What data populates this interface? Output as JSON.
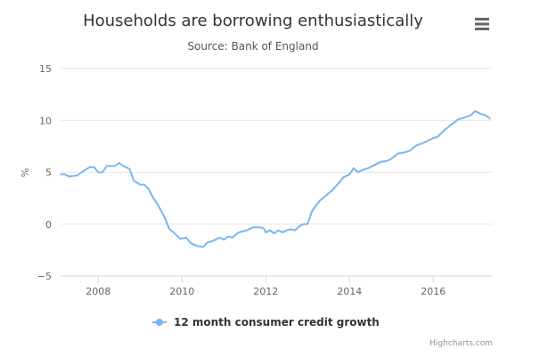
{
  "colors": {
    "series": "#7cb5ec",
    "grid": "#e6e6e6",
    "text": "#333333",
    "credits": "#909090"
  },
  "icons": {
    "menu": "hamburger-menu-icon"
  },
  "credits": "Highcharts.com",
  "chart_data": {
    "type": "line",
    "title": "Households are borrowing enthusiastically",
    "subtitle": "Source: Bank of England",
    "xlabel": "",
    "ylabel": "%",
    "xlim": [
      2007.1,
      2017.4
    ],
    "ylim": [
      -5,
      15
    ],
    "x_ticks": [
      2008,
      2010,
      2012,
      2014,
      2016
    ],
    "x_tick_labels": [
      "2008",
      "2010",
      "2012",
      "2014",
      "2016"
    ],
    "y_ticks": [
      -5,
      0,
      5,
      10,
      15
    ],
    "y_tick_labels": [
      "−5",
      "0",
      "5",
      "10",
      "15"
    ],
    "grid": true,
    "legend": "bottom-center",
    "series": [
      {
        "name": "12 month consumer credit growth",
        "color": "#7cb5ec",
        "x": [
          2007.1,
          2007.2,
          2007.3,
          2007.5,
          2007.6,
          2007.8,
          2007.9,
          2008.0,
          2008.1,
          2008.2,
          2008.3,
          2008.4,
          2008.5,
          2008.6,
          2008.75,
          2008.85,
          2009.0,
          2009.1,
          2009.2,
          2009.3,
          2009.4,
          2009.5,
          2009.6,
          2009.7,
          2009.8,
          2009.95,
          2010.1,
          2010.2,
          2010.35,
          2010.5,
          2010.6,
          2010.75,
          2010.9,
          2011.0,
          2011.1,
          2011.2,
          2011.35,
          2011.45,
          2011.55,
          2011.7,
          2011.85,
          2011.95,
          2012.0,
          2012.1,
          2012.2,
          2012.3,
          2012.4,
          2012.5,
          2012.6,
          2012.7,
          2012.8,
          2012.9,
          2013.0,
          2013.1,
          2013.2,
          2013.3,
          2013.45,
          2013.6,
          2013.75,
          2013.85,
          2014.0,
          2014.1,
          2014.2,
          2014.3,
          2014.45,
          2014.6,
          2014.75,
          2014.9,
          2015.0,
          2015.15,
          2015.3,
          2015.45,
          2015.6,
          2015.75,
          2015.9,
          2016.0,
          2016.1,
          2016.25,
          2016.4,
          2016.5,
          2016.6,
          2016.75,
          2016.9,
          2017.0,
          2017.15,
          2017.25,
          2017.35
        ],
        "values": [
          4.8,
          4.8,
          4.6,
          4.7,
          5.0,
          5.5,
          5.5,
          5.0,
          5.0,
          5.6,
          5.6,
          5.6,
          5.9,
          5.6,
          5.3,
          4.2,
          3.8,
          3.8,
          3.4,
          2.6,
          2.0,
          1.3,
          0.5,
          -0.5,
          -0.8,
          -1.4,
          -1.3,
          -1.8,
          -2.1,
          -2.2,
          -1.8,
          -1.6,
          -1.3,
          -1.5,
          -1.2,
          -1.3,
          -0.8,
          -0.7,
          -0.6,
          -0.3,
          -0.3,
          -0.4,
          -0.8,
          -0.6,
          -0.9,
          -0.6,
          -0.8,
          -0.6,
          -0.5,
          -0.6,
          -0.2,
          0.0,
          0.0,
          1.2,
          1.8,
          2.3,
          2.8,
          3.3,
          4.0,
          4.5,
          4.8,
          5.4,
          5.0,
          5.2,
          5.4,
          5.7,
          6.0,
          6.1,
          6.3,
          6.8,
          6.9,
          7.1,
          7.6,
          7.8,
          8.1,
          8.3,
          8.4,
          9.0,
          9.5,
          9.8,
          10.1,
          10.3,
          10.5,
          10.9,
          10.6,
          10.5,
          10.2
        ]
      }
    ]
  }
}
